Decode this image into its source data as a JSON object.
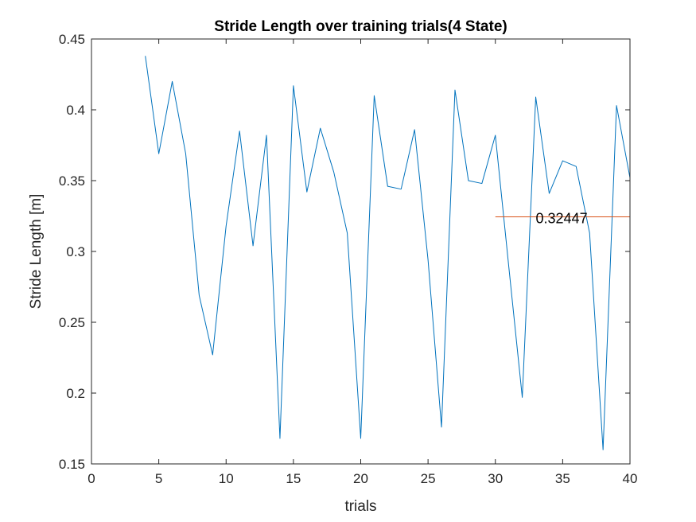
{
  "chart_data": {
    "type": "line",
    "title": "Stride Length over training trials(4 State)",
    "xlabel": "trials",
    "ylabel": "Stride Length [m]",
    "xlim": [
      0,
      40
    ],
    "ylim": [
      0.15,
      0.45
    ],
    "xticks": [
      0,
      5,
      10,
      15,
      20,
      25,
      30,
      35,
      40
    ],
    "yticks": [
      0.15,
      0.2,
      0.25,
      0.3,
      0.35,
      0.4,
      0.45
    ],
    "xtick_labels": [
      "0",
      "5",
      "10",
      "15",
      "20",
      "25",
      "30",
      "35",
      "40"
    ],
    "ytick_labels": [
      "0.15",
      "0.2",
      "0.25",
      "0.3",
      "0.35",
      "0.4",
      "0.45"
    ],
    "grid": false,
    "box": true,
    "series": [
      {
        "color": "#0072BD",
        "x": [
          4,
          5,
          6,
          7,
          8,
          9,
          10,
          11,
          12,
          13,
          14,
          15,
          16,
          17,
          18,
          19,
          20,
          21,
          22,
          23,
          24,
          25,
          26,
          27,
          28,
          29,
          30,
          31,
          32,
          33,
          34,
          35,
          36,
          37,
          38,
          39,
          40
        ],
        "y": [
          0.438,
          0.369,
          0.42,
          0.369,
          0.269,
          0.227,
          0.318,
          0.385,
          0.304,
          0.382,
          0.168,
          0.417,
          0.342,
          0.387,
          0.356,
          0.313,
          0.168,
          0.41,
          0.346,
          0.344,
          0.386,
          0.294,
          0.176,
          0.414,
          0.35,
          0.348,
          0.382,
          0.289,
          0.197,
          0.409,
          0.341,
          0.364,
          0.36,
          0.313,
          0.16,
          0.403,
          0.352
        ]
      }
    ],
    "reference_line": {
      "color": "#D95319",
      "y": 0.32447,
      "x": [
        30,
        40
      ],
      "label": "0.32447",
      "label_x": 33
    }
  }
}
